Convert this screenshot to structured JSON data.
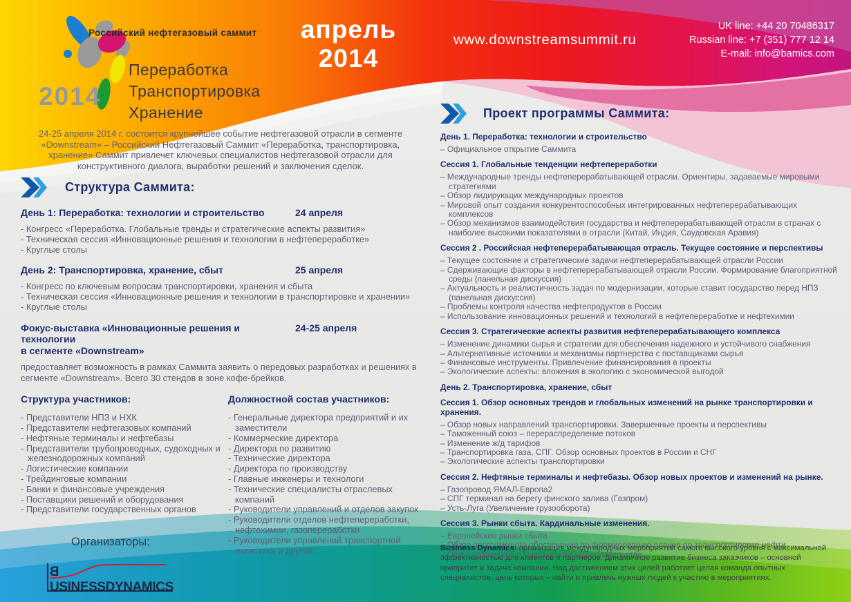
{
  "colors": {
    "navy_heading": "#22306e",
    "body_text": "#5e5e74",
    "chevron_dark": "#0e5aa7",
    "chevron_light": "#2e9fe2",
    "band_yellow": "#ffd500",
    "band_red": "#ee1a1a",
    "band_magenta": "#c2157e",
    "band_blue": "#28a0dc",
    "band_green": "#8ed117",
    "white": "#ffffff"
  },
  "header": {
    "tagline": "Российский нефтегазовый саммит",
    "logo_year": "2014",
    "logo_title_line1": "Переработка",
    "logo_title_line2": "Транспортировка",
    "logo_title_line3": "Хранение",
    "date_badge": "апрель 2014",
    "website": "www.downstreamsummit.ru",
    "contact_lines": [
      "UK line: +44 20 70486317",
      "Russian line: +7 (351) 777 12 14",
      "E-mail: info@bamics.com"
    ]
  },
  "left_page": {
    "intro": "24-25 апреля 2014 г. состоится крупнейшее событие нефтегазовой отрасли в сегменте «Downstream» – Российский Нефтегазовый Саммит «Переработка, транспортировка, хранение» Саммит привлечет ключевых специалистов нефтегазовой отрасли для конструктивного диалога, выработки решений и заключения сделок.",
    "structure_heading": "Структура Саммита:",
    "days": [
      {
        "title": "День 1: Переработка: технологии и строительство",
        "date": "24 апреля",
        "items": [
          "- Конгресс «Переработка. Глобальные тренды и стратегические аспекты развития»",
          "- Техническая сессия «Инновационные решения и технологии в нефтепереработке»",
          "- Круглые столы"
        ]
      },
      {
        "title": "День 2: Транспортировка, хранение, сбыт",
        "date": "25 апреля",
        "items": [
          "- Конгресс по ключевым вопросам транспортировки, хранения и сбыта",
          "- Техническая сессия «Инновационные решения и технологии в транспортировке и хранении»",
          "- Круглые столы"
        ]
      }
    ],
    "expo": {
      "title_line1": "Фокус-выставка «Инновационные решения и технологии",
      "title_line2": "в сегменте «Downstream»",
      "date": "24-25 апреля",
      "description": "предоставляет возможность в рамках Саммита заявить о передовых разработках и решениях в сегменте «Downstream». Всего 30 стендов в зоне кофе-брейков."
    },
    "participants": {
      "heading": "Структура участников:",
      "items": [
        "- Представители НПЗ и НХК",
        "- Представители нефтегазовых компаний",
        "- Нефтяные терминалы и нефтебазы",
        "- Представители трубопроводных, судоходных и железнодорожных компаний",
        "- Логистические компании",
        "- Трейдинговые компании",
        "- Банки и финансовые учреждения",
        "- Поставщики решений и оборудования",
        "- Представители  государственных органов"
      ]
    },
    "positions": {
      "heading": "Должностной состав участников:",
      "items": [
        "- Генеральные директора предприятий и их заместители",
        "- Коммерческие директора",
        "- Директора по развитию",
        "- Технические директора",
        "- Директора по производству",
        "- Главные инженеры и технологи",
        "- Технические специалисты отраслевых компаний",
        "- Руководители управлений и отделов закупок",
        "- Руководители отделов нефтепереработки, нефтехимии, газопереработки",
        "- Руководители управлений транспортной логистики и другие."
      ]
    },
    "organizers": {
      "label": "Организаторы:",
      "logo_first": "B",
      "logo_rest": "USINESS",
      "logo_word2": "DYNAMICS"
    }
  },
  "right_page": {
    "heading": "Проект программы Саммита:",
    "sections": [
      {
        "title": "День 1. Переработка: технологии и строительство",
        "bullets": [
          "– Официальное открытие Саммита"
        ]
      },
      {
        "title": "Сессия 1. Глобальные тенденции нефтепереработки",
        "bullets": [
          "– Международные тренды нефтеперерабатывающей отрасли. Ориентиры, задаваемые мировыми  стратегиями",
          "– Обзор лидирующих международных проектов",
          "– Мировой опыт создания конкурентоспособных интегрированных нефтеперерабатывающих комплексов",
          "– Обзор механизмов взаимодействия государства и нефтеперерабатывающей отрасли в странах с наиболее высокими показателями в отрасли (Китай, Индия, Саудовская Аравия)"
        ]
      },
      {
        "title": "Сессия 2 . Российская нефтеперерабатывающая отрасль. Текущее состояние и перспективы",
        "bullets": [
          "– Текущее состояние и стратегические задачи нефтеперерабатывающей отрасли России",
          "– Сдерживающие факторы в нефтеперерабатывающей отрасли России. Формирование благоприятной среды (панельная дискуссия)",
          "– Актуальность и реалистичность задач по модернизации, которые ставит государство перед НПЗ (панельная дискуссия)",
          "– Проблемы контроля качества нефтепродуктов в России",
          "– Использование инновационных решений и технологий в нефтепереработке и нефтехимии"
        ]
      },
      {
        "title": "Сессия 3. Стратегические аспекты развития нефтеперерабатывающего комплекса",
        "bullets": [
          "– Изменение динамики сырья и стратегии для обеспечения надежного и устойчивого снабжения",
          "– Альтернативные источники и механизмы партнерства с поставщиками сырья",
          "– Финансовые инструменты. Привлечение финансирования в проекты",
          "– Экологические аспекты: вложения в экологию с экономической выгодой"
        ]
      },
      {
        "title": "День 2.  Транспортировка, хранение, сбыт",
        "bullets": []
      },
      {
        "title": "Сессия 1. Обзор основных трендов и глобальных изменений на рынке транспортировки и хранения.",
        "bullets": [
          "– Обзор новых направлений транспортировки. Завершенные проекты и перспективы",
          "– Таможенный союз – перераспределение потоков",
          "– Изменение ж/д тарифов",
          "– Транспортировка газа, СПГ. Обзор основных проектов в России и СНГ",
          "– Экологические аспекты транспортировки"
        ]
      },
      {
        "title": "Сессия 2. Нефтяные терминалы и нефтебазы. Обзор новых проектов и изменений на рынке.",
        "bullets": [
          "– Газопровод ЯМАЛ-Европа2",
          "– СПГ терминал на берегу финского залива (Газпром)",
          "– Усть-Луга (Увеличение грузооборота)"
        ]
      },
      {
        "title": "Сессия 3. Рынки сбыта. Кардинальные изменения.",
        "bullets": [
          "– Европейские рынки сбыта",
          "– Обзор программного обеспечения по формированию планов по транспортировке нефти",
          "– Обзор изменений в таможенном законодательстве"
        ]
      }
    ],
    "footer": {
      "brand": "Business Dynamics:",
      "text": " организация международных мероприятий самого высокого уровня с максимальной эффективностью для клиентов и партнеров. Динамичное развитие бизнеса заказчиков – основной приоритет и задача компании. Над достижением этих целей работает целая команда опытных специалистов, цель которых – найти и привлечь нужных людей к участию в мероприятиях."
    }
  }
}
